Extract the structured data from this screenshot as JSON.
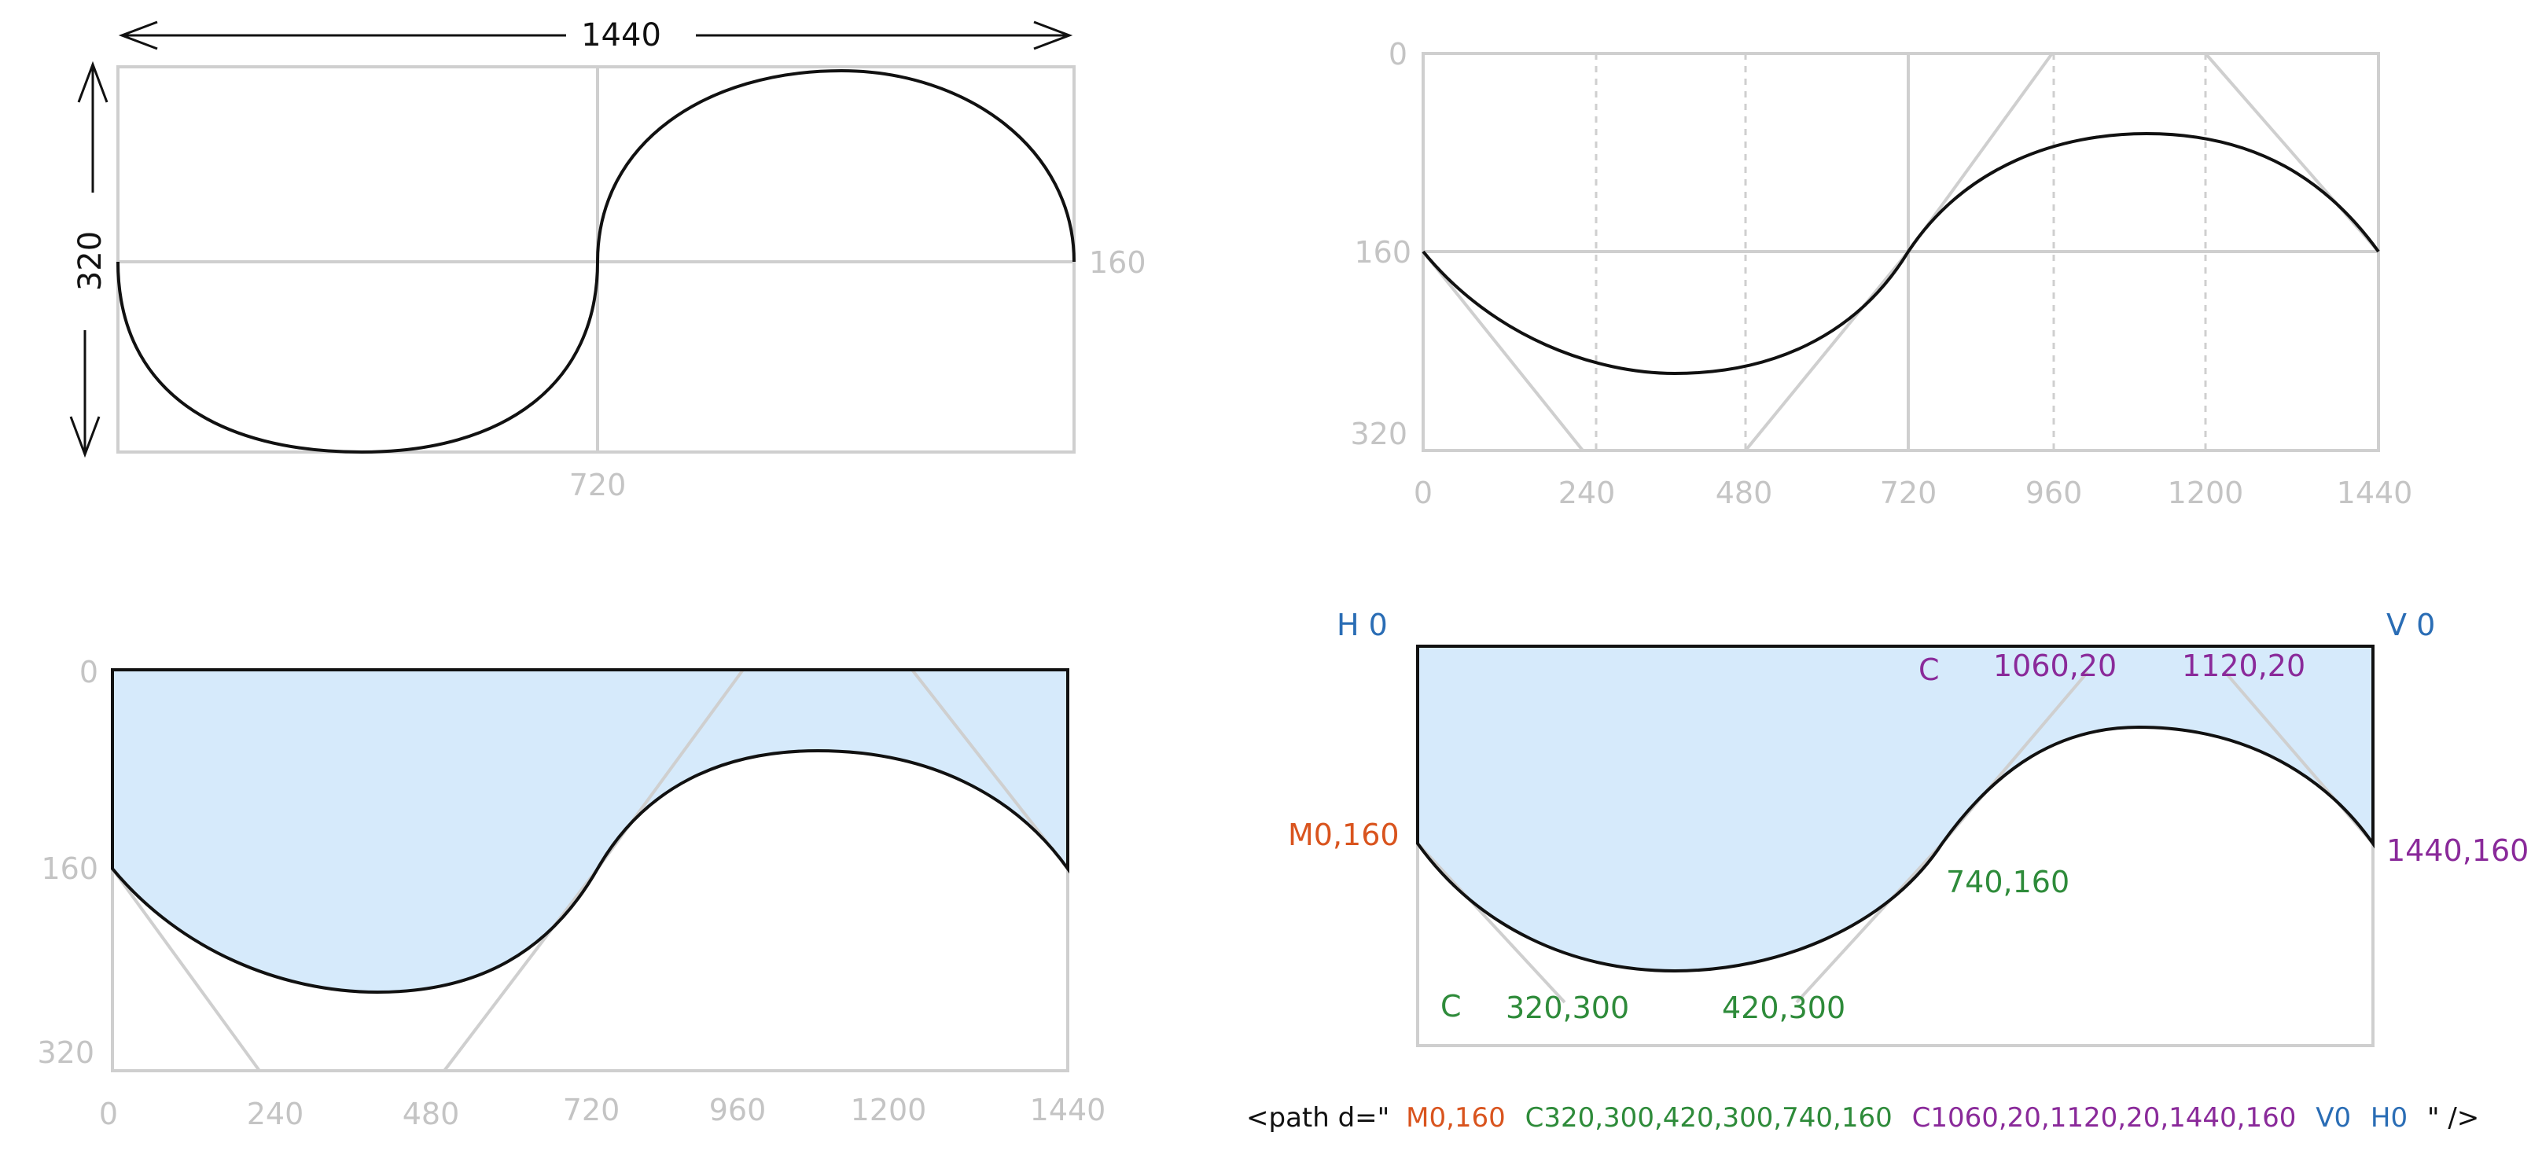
{
  "top_left": {
    "width_label": "1440",
    "height_label": "320",
    "mid_y_label": "160",
    "mid_x_label": "720"
  },
  "axes": {
    "y_labels": [
      "0",
      "160",
      "320"
    ],
    "x_labels": [
      "0",
      "240",
      "480",
      "720",
      "960",
      "1200",
      "1440"
    ]
  },
  "annotations": {
    "h0": "H 0",
    "v0": "V 0",
    "c_top": "C",
    "cp_1060_20": "1060,20",
    "cp_1120_20": "1120,20",
    "m0_160": "M0,160",
    "p1440_160": "1440,160",
    "p740_160": "740,160",
    "c_bottom": "C",
    "cp_320_300": "320,300",
    "cp_420_300": "420,300"
  },
  "path_code": {
    "prefix": "<path d=\"",
    "move": "M0,160",
    "curve1": "C320,300,420,300,740,160",
    "curve2": "C1060,20,1120,20,1440,160",
    "v0": "V0",
    "h0": "H0",
    "suffix": "\" />"
  },
  "colors": {
    "fill": "#d6eafb",
    "grid": "#cfcfcf",
    "stroke": "#111111",
    "blue": "#2a6db5",
    "orange": "#d9541e",
    "green": "#2e8b3a",
    "purple": "#8a2a9a"
  }
}
